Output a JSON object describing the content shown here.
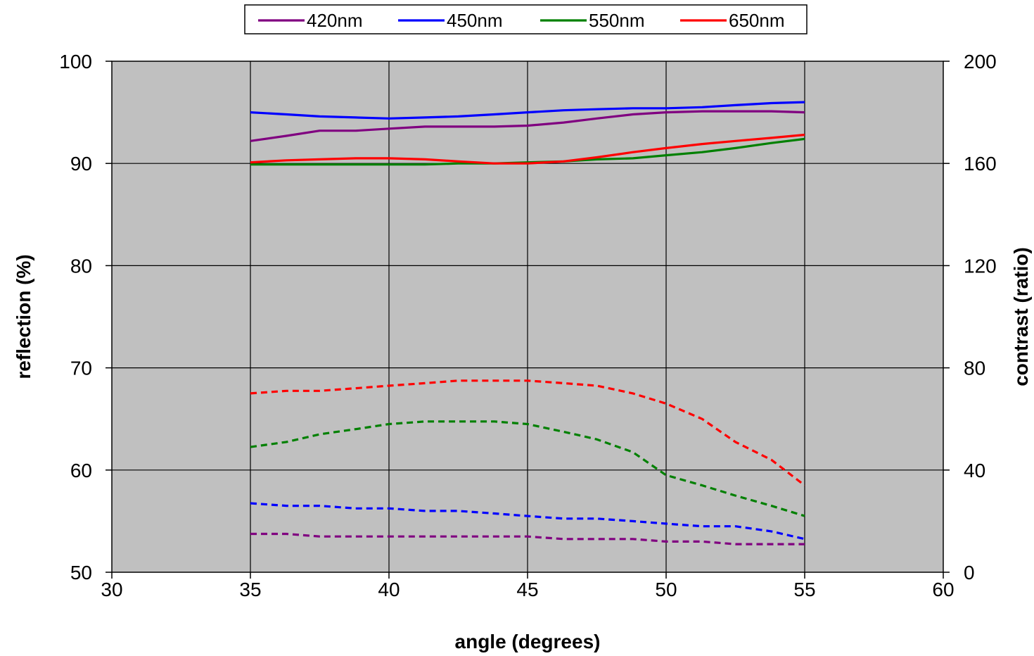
{
  "chart_data": {
    "type": "line",
    "xlabel": "angle (degrees)",
    "ylabel": "reflection (%)",
    "y2label": "contrast (ratio)",
    "xlim": [
      30,
      60
    ],
    "ylim": [
      50,
      100
    ],
    "y2lim": [
      0,
      200
    ],
    "xticks": [
      "30",
      "35",
      "40",
      "45",
      "50",
      "55",
      "60"
    ],
    "yticks": [
      "50",
      "60",
      "70",
      "80",
      "90",
      "100"
    ],
    "y2ticks": [
      "0",
      "40",
      "80",
      "120",
      "160",
      "200"
    ],
    "grid": true,
    "plot_background": "#c0c0c0",
    "legend_position": "top",
    "legend": [
      {
        "name": "420nm",
        "color": "#800080"
      },
      {
        "name": "450nm",
        "color": "#0000ff"
      },
      {
        "name": "550nm",
        "color": "#008000"
      },
      {
        "name": "650nm",
        "color": "#ff0000"
      }
    ],
    "x": [
      35,
      36.3,
      37.5,
      38.8,
      40,
      41.3,
      42.5,
      43.8,
      45,
      46.3,
      47.5,
      48.8,
      50,
      51.3,
      52.5,
      53.8,
      55
    ],
    "series": [
      {
        "name": "420nm",
        "axis": "left",
        "style": "solid",
        "color": "#800080",
        "values": [
          92.2,
          92.7,
          93.2,
          93.2,
          93.4,
          93.6,
          93.6,
          93.6,
          93.7,
          94.0,
          94.4,
          94.8,
          95.0,
          95.1,
          95.1,
          95.1,
          95.0
        ]
      },
      {
        "name": "450nm",
        "axis": "left",
        "style": "solid",
        "color": "#0000ff",
        "values": [
          95.0,
          94.8,
          94.6,
          94.5,
          94.4,
          94.5,
          94.6,
          94.8,
          95.0,
          95.2,
          95.3,
          95.4,
          95.4,
          95.5,
          95.7,
          95.9,
          96.0
        ]
      },
      {
        "name": "550nm",
        "axis": "left",
        "style": "solid",
        "color": "#008000",
        "values": [
          89.9,
          89.9,
          89.9,
          89.9,
          89.9,
          89.9,
          90.0,
          90.0,
          90.1,
          90.2,
          90.4,
          90.5,
          90.8,
          91.1,
          91.5,
          92.0,
          92.4
        ]
      },
      {
        "name": "650nm",
        "axis": "left",
        "style": "solid",
        "color": "#ff0000",
        "values": [
          90.1,
          90.3,
          90.4,
          90.5,
          90.5,
          90.4,
          90.2,
          90.0,
          90.0,
          90.2,
          90.6,
          91.1,
          91.5,
          91.9,
          92.2,
          92.5,
          92.8
        ]
      },
      {
        "name": "420nm",
        "axis": "right",
        "style": "dotted",
        "color": "#800080",
        "values": [
          15,
          15,
          14,
          14,
          14,
          14,
          14,
          14,
          14,
          13,
          13,
          13,
          12,
          12,
          11,
          11,
          11
        ]
      },
      {
        "name": "450nm",
        "axis": "right",
        "style": "dotted",
        "color": "#0000ff",
        "values": [
          27,
          26,
          26,
          25,
          25,
          24,
          24,
          23,
          22,
          21,
          21,
          20,
          19,
          18,
          18,
          16,
          13
        ]
      },
      {
        "name": "550nm",
        "axis": "right",
        "style": "dotted",
        "color": "#008000",
        "values": [
          49,
          51,
          54,
          56,
          58,
          59,
          59,
          59,
          58,
          55,
          52,
          47,
          38,
          34,
          30,
          26,
          22
        ]
      },
      {
        "name": "650nm",
        "axis": "right",
        "style": "dotted",
        "color": "#ff0000",
        "values": [
          70,
          71,
          71,
          72,
          73,
          74,
          75,
          75,
          75,
          74,
          73,
          70,
          66,
          60,
          51,
          44,
          34
        ]
      }
    ]
  }
}
